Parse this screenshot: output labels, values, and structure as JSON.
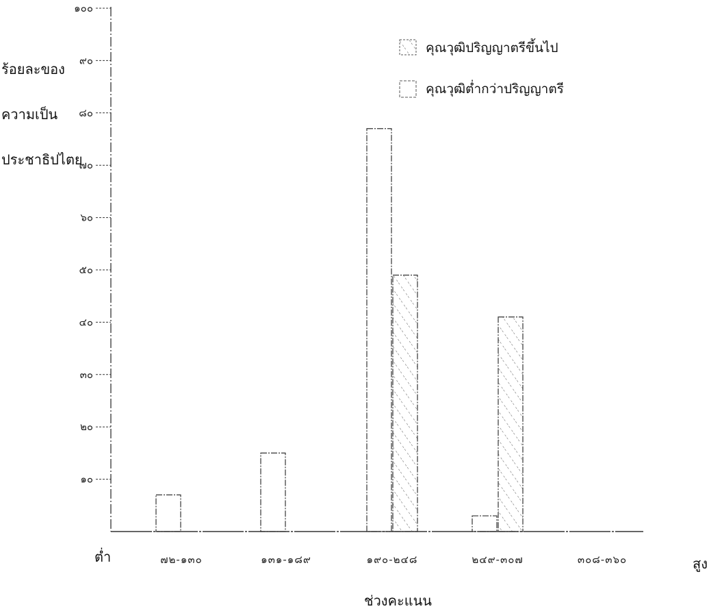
{
  "chart_data": {
    "type": "bar",
    "ylabel_lines": [
      "ร้อยละของ",
      "ความเป็น",
      "ประชาธิปไตย"
    ],
    "xlabel": "ช่วงคะแนน",
    "x_end_labels": {
      "low": "ต่ำ",
      "high": "สูง"
    },
    "categories": [
      "๗๒-๑๓๐",
      "๑๓๑-๑๘๙",
      "๑๙๐-๒๔๘",
      "๒๔๙-๓๐๗",
      "๓๐๘-๓๖๐"
    ],
    "y_ticks": [
      {
        "value": 10,
        "label": "๑๐"
      },
      {
        "value": 20,
        "label": "๒๐"
      },
      {
        "value": 30,
        "label": "๓๐"
      },
      {
        "value": 40,
        "label": "๔๐"
      },
      {
        "value": 50,
        "label": "๕๐"
      },
      {
        "value": 60,
        "label": "๖๐"
      },
      {
        "value": 70,
        "label": "๗๐"
      },
      {
        "value": 80,
        "label": "๘๐"
      },
      {
        "value": 90,
        "label": "๙๐"
      },
      {
        "value": 100,
        "label": "๑๐๐"
      }
    ],
    "ylim": [
      0,
      100
    ],
    "series": [
      {
        "name": "คุณวุฒิปริญญาตรีขึ้นไป",
        "values": [
          0,
          0,
          49,
          41,
          0
        ],
        "pattern": "hatched"
      },
      {
        "name": "คุณวุฒิต่ำกว่าปริญญาตรี",
        "values": [
          7,
          15,
          77,
          3,
          0
        ],
        "pattern": "plain"
      }
    ],
    "legend_position": "top-right",
    "grid": false
  }
}
